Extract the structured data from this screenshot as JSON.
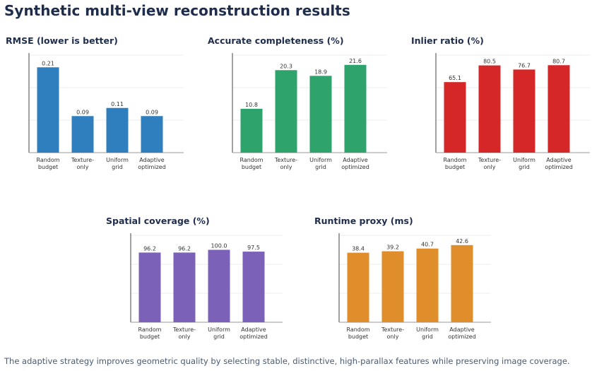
{
  "title": "Synthetic multi-view reconstruction results",
  "caption": "The adaptive strategy improves geometric quality by selecting stable, distinctive, high-parallax features while preserving image coverage.",
  "chart_data": [
    {
      "type": "bar",
      "title": "RMSE (lower is better)",
      "categories": [
        "Random budget",
        "Texture-only",
        "Uniform grid",
        "Adaptive optimized"
      ],
      "values": [
        0.21,
        0.09,
        0.11,
        0.09
      ],
      "color": "#2f7fbf",
      "ylim": [
        0,
        0.24
      ],
      "yticks": [
        0,
        0.08,
        0.16,
        0.24
      ],
      "grid": true
    },
    {
      "type": "bar",
      "title": "Accurate completeness (%)",
      "categories": [
        "Random budget",
        "Texture-only",
        "Uniform grid",
        "Adaptive optimized"
      ],
      "values": [
        10.8,
        20.3,
        18.9,
        21.6
      ],
      "color": "#2ea36b",
      "ylim": [
        0,
        24
      ],
      "yticks": [
        0,
        8,
        16,
        24
      ],
      "grid": true
    },
    {
      "type": "bar",
      "title": "Inlier ratio (%)",
      "categories": [
        "Random budget",
        "Texture-only",
        "Uniform grid",
        "Adaptive optimized"
      ],
      "values": [
        65.1,
        80.5,
        76.7,
        80.7
      ],
      "color": "#d62728",
      "ylim": [
        0,
        90
      ],
      "yticks": [
        0,
        30,
        60,
        90
      ],
      "grid": true
    },
    {
      "type": "bar",
      "title": "Spatial coverage (%)",
      "categories": [
        "Random budget",
        "Texture-only",
        "Uniform grid",
        "Adaptive optimized"
      ],
      "values": [
        96.2,
        96.2,
        100,
        97.5
      ],
      "value_labels": [
        "96.2",
        "96.2",
        "100.0",
        "97.5"
      ],
      "color": "#7b61b8",
      "ylim": [
        0,
        120
      ],
      "yticks": [
        0,
        40,
        80,
        120
      ],
      "grid": true
    },
    {
      "type": "bar",
      "title": "Runtime proxy (ms)",
      "categories": [
        "Random budget",
        "Texture-only",
        "Uniform grid",
        "Adaptive optimized"
      ],
      "values": [
        38.4,
        39.2,
        40.7,
        42.6
      ],
      "color": "#e08e2b",
      "ylim": [
        0,
        48
      ],
      "yticks": [
        0,
        16,
        32,
        48
      ],
      "grid": true
    }
  ]
}
